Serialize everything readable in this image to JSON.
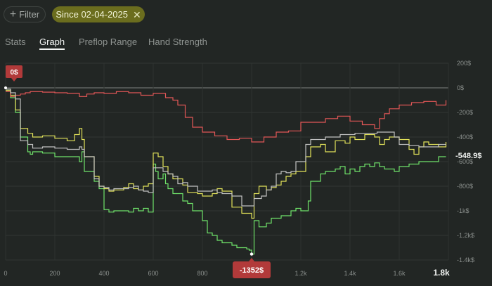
{
  "toolbar": {
    "filter_label": "Filter",
    "date_chip_label": "Since 02-04-2025"
  },
  "tabs": [
    {
      "label": "Stats",
      "active": false
    },
    {
      "label": "Graph",
      "active": true
    },
    {
      "label": "Preflop Range",
      "active": false
    },
    {
      "label": "Hand Strength",
      "active": false
    }
  ],
  "chart_data": {
    "type": "line",
    "xlim": [
      0,
      1800
    ],
    "ylim": [
      -1400,
      200
    ],
    "x_ticks": [
      "0",
      "200",
      "400",
      "600",
      "800",
      "1k",
      "1.2k",
      "1.4k",
      "1.6k",
      "1.8k"
    ],
    "x_tick_values": [
      0,
      200,
      400,
      600,
      800,
      1000,
      1200,
      1400,
      1600,
      1800
    ],
    "y_ticks": [
      "200$",
      "0$",
      "-200$",
      "-400$",
      "-600$",
      "-800$",
      "-1k$",
      "-1.2k$",
      "-1.4k$"
    ],
    "y_tick_values": [
      200,
      0,
      -200,
      -400,
      -600,
      -800,
      -1000,
      -1200,
      -1400
    ],
    "grid": true,
    "colors": {
      "green": "#6fe36a",
      "yellow": "#e3e35a",
      "red": "#e35757",
      "white": "#c2c2c2",
      "badge": "#b23a3a"
    },
    "badges": {
      "start": "0$",
      "min": "-1352$",
      "end": "-548.9$"
    },
    "series": [
      {
        "color": "#6fe36a",
        "x": [
          0,
          20,
          40,
          60,
          90,
          100,
          110,
          150,
          200,
          250,
          300,
          310,
          320,
          360,
          380,
          400,
          420,
          440,
          470,
          500,
          520,
          540,
          560,
          580,
          600,
          610,
          620,
          640,
          650,
          660,
          680,
          700,
          720,
          740,
          760,
          780,
          800,
          820,
          840,
          860,
          880,
          900,
          920,
          940,
          960,
          980,
          990,
          1000,
          1010,
          1030,
          1060,
          1080,
          1100,
          1120,
          1160,
          1180,
          1200,
          1230,
          1240,
          1260,
          1280,
          1300,
          1340,
          1360,
          1380,
          1400,
          1420,
          1440,
          1460,
          1480,
          1500,
          1520,
          1540,
          1560,
          1580,
          1600,
          1640,
          1680,
          1720,
          1760,
          1790
        ],
        "y": [
          -20,
          -80,
          -200,
          -400,
          -520,
          -540,
          -520,
          -530,
          -560,
          -560,
          -600,
          -520,
          -680,
          -760,
          -820,
          -990,
          -1010,
          -1000,
          -1000,
          -1010,
          -980,
          -1000,
          -980,
          -1010,
          -620,
          -680,
          -740,
          -700,
          -780,
          -820,
          -860,
          -860,
          -920,
          -940,
          -1000,
          -1000,
          -1080,
          -1180,
          -1200,
          -1240,
          -1260,
          -1260,
          -1280,
          -1300,
          -1300,
          -1310,
          -1320,
          -1352,
          -1080,
          -1130,
          -1100,
          -1060,
          -1060,
          -1040,
          -1000,
          -980,
          -1000,
          -920,
          -760,
          -760,
          -700,
          -680,
          -660,
          -640,
          -700,
          -660,
          -680,
          -640,
          -620,
          -640,
          -610,
          -640,
          -660,
          -660,
          -680,
          -640,
          -620,
          -600,
          -600,
          -560,
          -560
        ]
      },
      {
        "color": "#e3e35a",
        "x": [
          0,
          20,
          40,
          60,
          90,
          110,
          150,
          200,
          250,
          280,
          300,
          310,
          320,
          360,
          380,
          400,
          420,
          440,
          480,
          500,
          520,
          540,
          560,
          580,
          600,
          620,
          640,
          660,
          680,
          700,
          720,
          740,
          780,
          800,
          820,
          840,
          860,
          880,
          920,
          960,
          1000,
          1010,
          1030,
          1060,
          1080,
          1100,
          1120,
          1140,
          1160,
          1180,
          1200,
          1220,
          1240,
          1280,
          1300,
          1340,
          1380,
          1400,
          1420,
          1460,
          1500,
          1520,
          1540,
          1560,
          1600,
          1640,
          1660,
          1680,
          1700,
          1720,
          1760,
          1790
        ],
        "y": [
          -20,
          -60,
          -180,
          -330,
          -370,
          -400,
          -390,
          -410,
          -430,
          -380,
          -330,
          -420,
          -560,
          -720,
          -800,
          -820,
          -840,
          -830,
          -810,
          -780,
          -820,
          -830,
          -800,
          -780,
          -530,
          -560,
          -640,
          -700,
          -740,
          -740,
          -790,
          -850,
          -860,
          -880,
          -880,
          -860,
          -820,
          -840,
          -970,
          -1020,
          -1060,
          -860,
          -800,
          -830,
          -810,
          -790,
          -760,
          -720,
          -700,
          -680,
          -680,
          -560,
          -480,
          -460,
          -520,
          -430,
          -450,
          -400,
          -420,
          -380,
          -400,
          -460,
          -420,
          -400,
          -420,
          -500,
          -540,
          -480,
          -440,
          -460,
          -480,
          -440
        ]
      },
      {
        "color": "#e35757",
        "x": [
          0,
          20,
          40,
          60,
          80,
          100,
          150,
          200,
          250,
          300,
          330,
          360,
          400,
          450,
          500,
          550,
          600,
          650,
          680,
          700,
          730,
          760,
          800,
          850,
          900,
          950,
          1000,
          1050,
          1100,
          1150,
          1200,
          1250,
          1300,
          1350,
          1400,
          1450,
          1500,
          1520,
          1540,
          1560,
          1600,
          1650,
          1700,
          1750,
          1790
        ],
        "y": [
          -30,
          -70,
          -60,
          -50,
          -40,
          -30,
          -35,
          -40,
          -45,
          -70,
          -50,
          -40,
          -45,
          -30,
          -40,
          -60,
          -45,
          -80,
          -100,
          -140,
          -240,
          -320,
          -360,
          -390,
          -420,
          -410,
          -440,
          -400,
          -360,
          -350,
          -280,
          -280,
          -250,
          -230,
          -270,
          -300,
          -330,
          -250,
          -210,
          -170,
          -140,
          -120,
          -110,
          -140,
          -100
        ]
      },
      {
        "color": "#c2c2c2",
        "x": [
          0,
          20,
          40,
          60,
          90,
          110,
          150,
          200,
          250,
          280,
          300,
          310,
          320,
          360,
          380,
          400,
          420,
          440,
          480,
          500,
          520,
          540,
          560,
          580,
          600,
          620,
          640,
          660,
          680,
          700,
          720,
          740,
          780,
          800,
          820,
          840,
          860,
          880,
          920,
          960,
          1000,
          1010,
          1040,
          1060,
          1080,
          1100,
          1120,
          1140,
          1160,
          1180,
          1200,
          1220,
          1240,
          1260,
          1280,
          1300,
          1320,
          1360,
          1400,
          1420,
          1440,
          1460,
          1480,
          1500,
          1510,
          1540,
          1560,
          1580,
          1600,
          1640,
          1680,
          1720,
          1760,
          1790
        ],
        "y": [
          -10,
          -40,
          -90,
          -430,
          -460,
          -490,
          -480,
          -490,
          -500,
          -500,
          -480,
          -500,
          -560,
          -740,
          -800,
          -810,
          -830,
          -820,
          -820,
          -810,
          -800,
          -830,
          -840,
          -850,
          -650,
          -650,
          -680,
          -700,
          -720,
          -780,
          -770,
          -800,
          -840,
          -840,
          -840,
          -830,
          -850,
          -860,
          -880,
          -960,
          -960,
          -900,
          -880,
          -830,
          -800,
          -700,
          -680,
          -690,
          -680,
          -600,
          -600,
          -460,
          -420,
          -420,
          -420,
          -400,
          -400,
          -380,
          -380,
          -370,
          -370,
          -370,
          -370,
          -370,
          -360,
          -360,
          -360,
          -400,
          -460,
          -470,
          -480,
          -480,
          -460,
          -460
        ]
      }
    ]
  }
}
